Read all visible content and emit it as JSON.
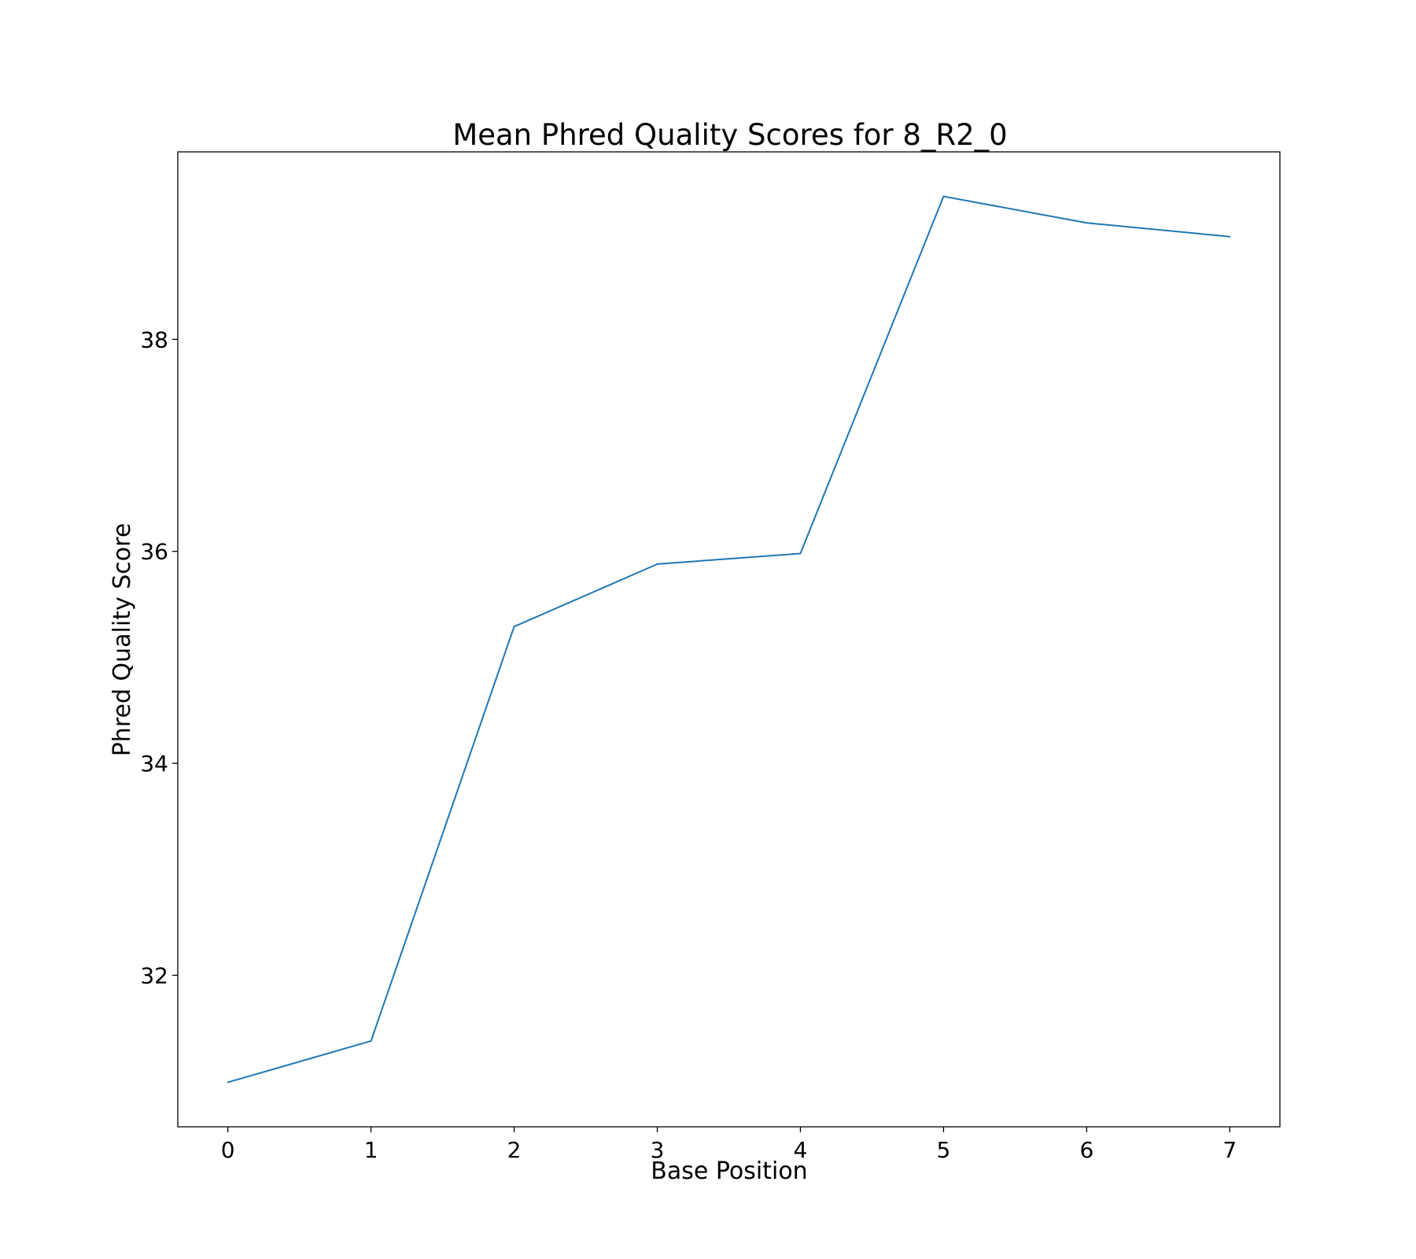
{
  "chart_data": {
    "type": "line",
    "title": "Mean Phred Quality Scores for 8_R2_0",
    "xlabel": "Base Position",
    "ylabel": "Phred Quality Score",
    "x": [
      0,
      1,
      2,
      3,
      4,
      5,
      6,
      7
    ],
    "series": [
      {
        "values": [
          30.99,
          31.38,
          35.29,
          35.88,
          35.98,
          39.35,
          39.1,
          38.97
        ],
        "color": "#1f77b4"
      }
    ],
    "xlim": [
      -0.35,
      7.35
    ],
    "ylim": [
      30.57,
      39.77
    ],
    "xticks": [
      0,
      1,
      2,
      3,
      4,
      5,
      6,
      7
    ],
    "yticks": [
      32,
      34,
      36,
      38
    ],
    "grid": false,
    "legend": "none"
  }
}
